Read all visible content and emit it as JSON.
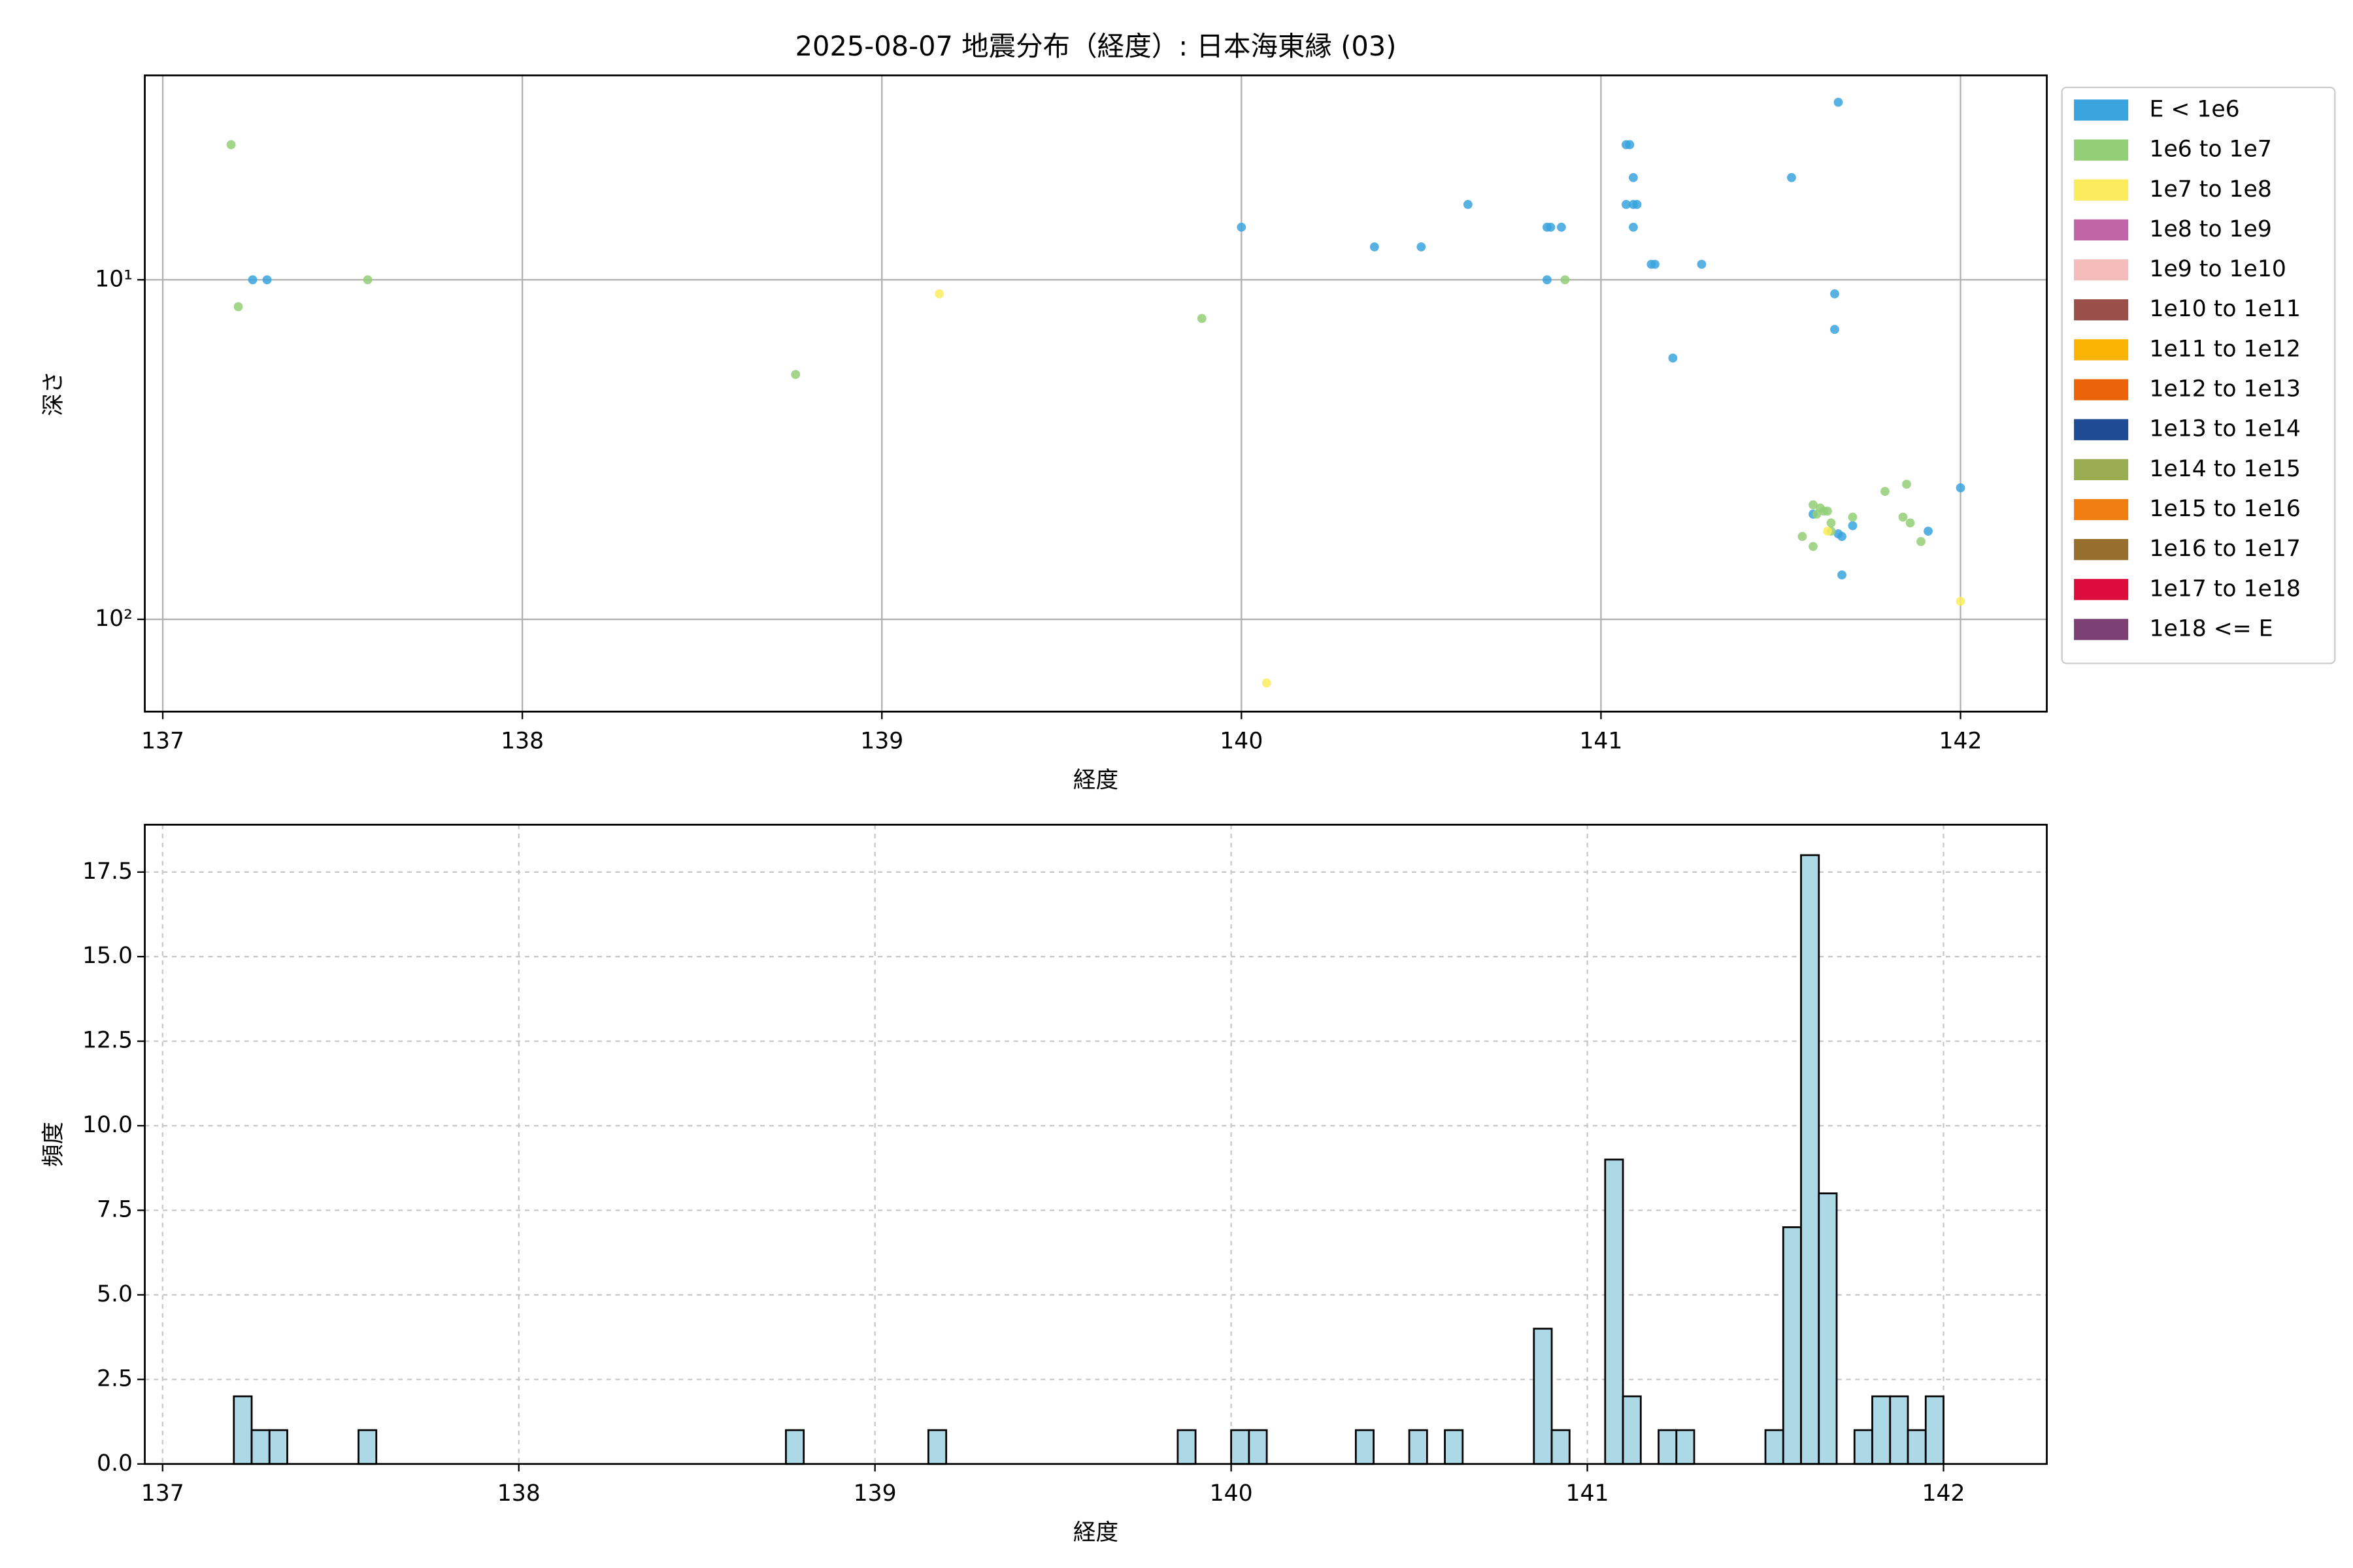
{
  "chart_data": [
    {
      "type": "scatter",
      "title": "2025-08-07 地震分布（経度）: 日本海東縁 (03)",
      "xlabel": "経度",
      "ylabel": "深さ",
      "xlim": [
        136.95,
        142.24
      ],
      "xticks": [
        137,
        138,
        139,
        140,
        141,
        142
      ],
      "yscale": "log",
      "ylim": [
        187,
        2.5
      ],
      "yticks": [
        {
          "value": 10,
          "label": "10¹"
        },
        {
          "value": 100,
          "label": "10²"
        }
      ],
      "grid": true,
      "grid_linestyle": "solid",
      "legend": "outside-upper-right",
      "series": [
        {
          "name": "E < 1e6",
          "color": "#3aa3dd",
          "x": [
            137.25,
            137.29,
            140.0,
            140.37,
            140.5,
            140.63,
            140.85,
            140.85,
            140.86,
            140.89,
            141.07,
            141.08,
            141.09,
            141.07,
            141.09,
            141.1,
            141.09,
            141.14,
            141.15,
            141.28,
            141.2,
            141.53,
            141.66,
            141.65,
            141.65,
            142.0,
            141.59,
            141.7,
            141.66,
            141.67,
            141.91,
            141.67
          ],
          "y": [
            10,
            10,
            7,
            8,
            8,
            6,
            10,
            7,
            7,
            7,
            4,
            4,
            5,
            6,
            6,
            6,
            7,
            9,
            9,
            9,
            17,
            5,
            3,
            11,
            14,
            41,
            49,
            53,
            56,
            57,
            55,
            74
          ]
        },
        {
          "name": "1e6 to 1e7",
          "color": "#93cf77",
          "x": [
            137.19,
            137.21,
            137.57,
            138.76,
            139.89,
            140.9,
            141.59,
            141.61,
            141.62,
            141.6,
            141.63,
            141.56,
            141.59,
            141.64,
            141.7,
            141.79,
            141.85,
            141.84,
            141.86,
            141.89,
            141.64
          ],
          "y": [
            4,
            12,
            10,
            19,
            13,
            10,
            46,
            47,
            48,
            49,
            48,
            57,
            61,
            52,
            50,
            42,
            40,
            50,
            52,
            59,
            55
          ]
        },
        {
          "name": "1e7 to 1e8",
          "color": "#fbec5d",
          "x": [
            139.16,
            140.07,
            142.0,
            141.63
          ],
          "y": [
            11,
            154,
            88.5,
            55
          ]
        },
        {
          "name": "1e8 to 1e9",
          "color": "#bf64a5",
          "x": [],
          "y": []
        },
        {
          "name": "1e9 to 1e10",
          "color": "#f4bcbb",
          "x": [],
          "y": []
        },
        {
          "name": "1e10 to 1e11",
          "color": "#9a4f4a",
          "x": [],
          "y": []
        },
        {
          "name": "1e11 to 1e12",
          "color": "#f8b400",
          "x": [],
          "y": []
        },
        {
          "name": "1e12 to 1e13",
          "color": "#ea6308",
          "x": [],
          "y": []
        },
        {
          "name": "1e13 to 1e14",
          "color": "#1f4a94",
          "x": [],
          "y": []
        },
        {
          "name": "1e14 to 1e15",
          "color": "#9aad53",
          "x": [],
          "y": []
        },
        {
          "name": "1e15 to 1e16",
          "color": "#f07d10",
          "x": [],
          "y": []
        },
        {
          "name": "1e16 to 1e17",
          "color": "#966e2e",
          "x": [],
          "y": []
        },
        {
          "name": "1e17 to 1e18",
          "color": "#dc0d3c",
          "x": [],
          "y": []
        },
        {
          "name": "1e18 <= E",
          "color": "#7b3f74",
          "x": [],
          "y": []
        }
      ]
    },
    {
      "type": "histogram",
      "xlabel": "経度",
      "ylabel": "頻度",
      "xlim": [
        136.95,
        142.29
      ],
      "xticks": [
        137,
        138,
        139,
        140,
        141,
        142
      ],
      "ylim": [
        0,
        18.9
      ],
      "yticks": [
        {
          "value": 0,
          "label": "0.0"
        },
        2.5,
        {
          "value": 5,
          "label": "5.0"
        },
        7.5,
        {
          "value": 10,
          "label": "10.0"
        },
        12.5,
        {
          "value": 15,
          "label": "15.0"
        },
        17.5
      ],
      "grid": true,
      "grid_linestyle": "dashed",
      "color": "#add8e6",
      "edgecolor": "#000000",
      "bins": [
        137.2,
        137.25,
        137.3,
        137.35,
        137.4,
        137.45,
        137.5,
        137.55,
        137.6,
        137.65,
        137.7,
        137.75,
        137.8,
        137.85,
        137.9,
        137.95,
        138.0,
        138.05,
        138.1,
        138.15,
        138.2,
        138.25,
        138.3,
        138.35,
        138.4,
        138.45,
        138.5,
        138.55,
        138.6,
        138.65,
        138.7,
        138.75,
        138.8,
        138.85,
        138.9,
        138.95,
        139.0,
        139.05,
        139.1,
        139.15,
        139.2,
        139.25,
        139.3,
        139.35,
        139.4,
        139.45,
        139.5,
        139.55,
        139.6,
        139.65,
        139.7,
        139.75,
        139.8,
        139.85,
        139.9,
        139.95,
        140.0,
        140.05,
        140.1,
        140.15,
        140.2,
        140.25,
        140.3,
        140.35,
        140.4,
        140.45,
        140.5,
        140.55,
        140.6,
        140.65,
        140.7,
        140.75,
        140.8,
        140.85,
        140.9,
        140.95,
        141.0,
        141.05,
        141.1,
        141.15,
        141.2,
        141.25,
        141.3,
        141.35,
        141.4,
        141.45,
        141.5,
        141.55,
        141.6,
        141.65,
        141.7,
        141.75,
        141.8,
        141.85,
        141.9,
        141.95,
        142.0
      ],
      "counts": [
        2,
        1,
        1,
        0,
        0,
        0,
        0,
        1,
        0,
        0,
        0,
        0,
        0,
        0,
        0,
        0,
        0,
        0,
        0,
        0,
        0,
        0,
        0,
        0,
        0,
        0,
        0,
        0,
        0,
        0,
        0,
        1,
        0,
        0,
        0,
        0,
        0,
        0,
        0,
        1,
        0,
        0,
        0,
        0,
        0,
        0,
        0,
        0,
        0,
        0,
        0,
        0,
        0,
        1,
        0,
        0,
        1,
        1,
        0,
        0,
        0,
        0,
        0,
        1,
        0,
        0,
        1,
        0,
        1,
        0,
        0,
        0,
        0,
        4,
        1,
        0,
        0,
        9,
        2,
        0,
        1,
        1,
        0,
        0,
        0,
        0,
        1,
        7,
        18,
        8,
        0,
        1,
        2,
        2,
        1,
        2
      ]
    }
  ]
}
